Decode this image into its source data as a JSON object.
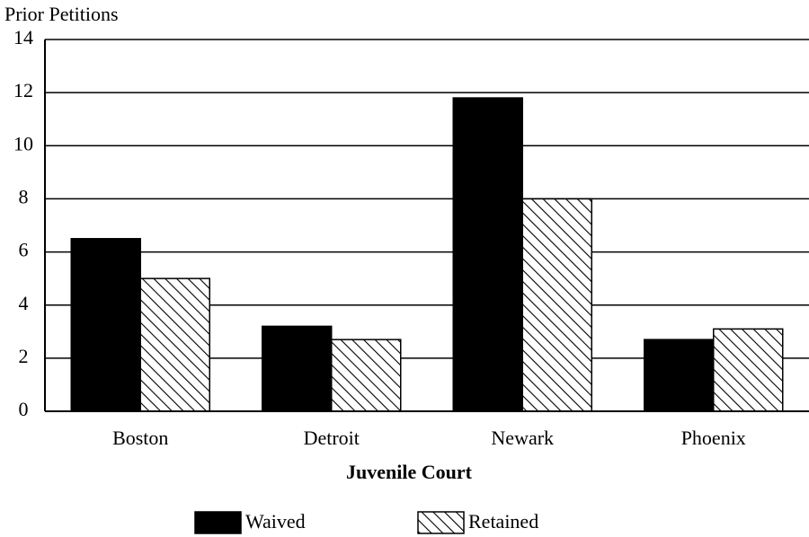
{
  "chart_data": {
    "type": "bar",
    "y_label": "Prior Petitions",
    "x_label": "Juvenile Court",
    "categories": [
      "Boston",
      "Detroit",
      "Newark",
      "Phoenix"
    ],
    "series": [
      {
        "name": "Waived",
        "color": "#000000",
        "fill": "solid",
        "values": [
          6.5,
          3.2,
          11.8,
          2.7
        ]
      },
      {
        "name": "Retained",
        "color": "#000000",
        "fill": "hatch",
        "values": [
          5,
          2.7,
          8,
          3.1
        ]
      }
    ],
    "ylim": [
      0,
      14
    ],
    "yticks": [
      0,
      2,
      4,
      6,
      8,
      10,
      12,
      14
    ],
    "grid": true
  }
}
